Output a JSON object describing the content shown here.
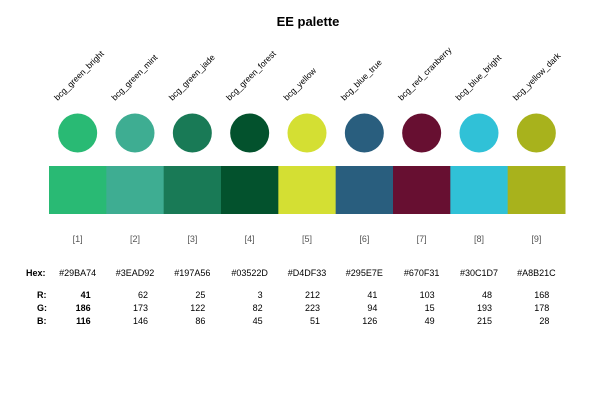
{
  "chart_data": {
    "type": "palette",
    "title": "EE palette",
    "colors": [
      {
        "index": "[1]",
        "name": "bcg_green_bright",
        "hex": "#29BA74",
        "r": 41,
        "g": 186,
        "b": 116
      },
      {
        "index": "[2]",
        "name": "bcg_green_mint",
        "hex": "#3EAD92",
        "r": 62,
        "g": 173,
        "b": 146
      },
      {
        "index": "[3]",
        "name": "bcg_green_jade",
        "hex": "#197A56",
        "r": 25,
        "g": 122,
        "b": 86
      },
      {
        "index": "[4]",
        "name": "bcg_green_forest",
        "hex": "#03522D",
        "r": 3,
        "g": 82,
        "b": 45
      },
      {
        "index": "[5]",
        "name": "bcg_yellow",
        "hex": "#D4DF33",
        "r": 212,
        "g": 223,
        "b": 51
      },
      {
        "index": "[6]",
        "name": "bcg_blue_true",
        "hex": "#295E7E",
        "r": 41,
        "g": 94,
        "b": 126
      },
      {
        "index": "[7]",
        "name": "bcg_red_cranberry",
        "hex": "#670F31",
        "r": 103,
        "g": 15,
        "b": 49
      },
      {
        "index": "[8]",
        "name": "bcg_blue_bright",
        "hex": "#30C1D7",
        "r": 48,
        "g": 193,
        "b": 215
      },
      {
        "index": "[9]",
        "name": "bcg_yellow_dark",
        "hex": "#A8B21C",
        "r": 168,
        "g": 178,
        "b": 28
      }
    ],
    "row_labels": {
      "hex": "Hex:",
      "r": "R:",
      "g": "G:",
      "b": "B:"
    }
  }
}
